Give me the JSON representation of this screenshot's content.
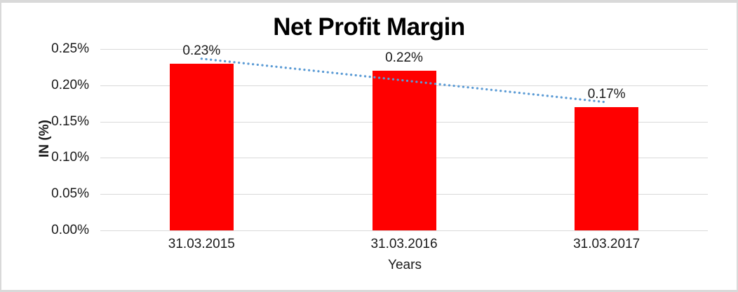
{
  "chart_data": {
    "type": "bar",
    "title": "Net Profit Margin",
    "xlabel": "Years",
    "ylabel": "IN (%)",
    "categories": [
      "31.03.2015",
      "31.03.2016",
      "31.03.2017"
    ],
    "values": [
      0.23,
      0.22,
      0.17
    ],
    "data_labels": [
      "0.23%",
      "0.22%",
      "0.17%"
    ],
    "ylim": [
      0,
      0.25
    ],
    "yticks": [
      {
        "value": 0.0,
        "label": "0.00%"
      },
      {
        "value": 0.05,
        "label": "0.05%"
      },
      {
        "value": 0.1,
        "label": "0.10%"
      },
      {
        "value": 0.15,
        "label": "0.15%"
      },
      {
        "value": 0.2,
        "label": "0.20%"
      },
      {
        "value": 0.25,
        "label": "0.25%"
      }
    ],
    "grid": true,
    "legend": "none",
    "bar_color": "#FF0000",
    "grid_color": "#D9D9D9",
    "text_color": "#1A1A1A",
    "trendline": {
      "type": "linear",
      "style": "dotted",
      "color": "#5B9BD5"
    }
  }
}
